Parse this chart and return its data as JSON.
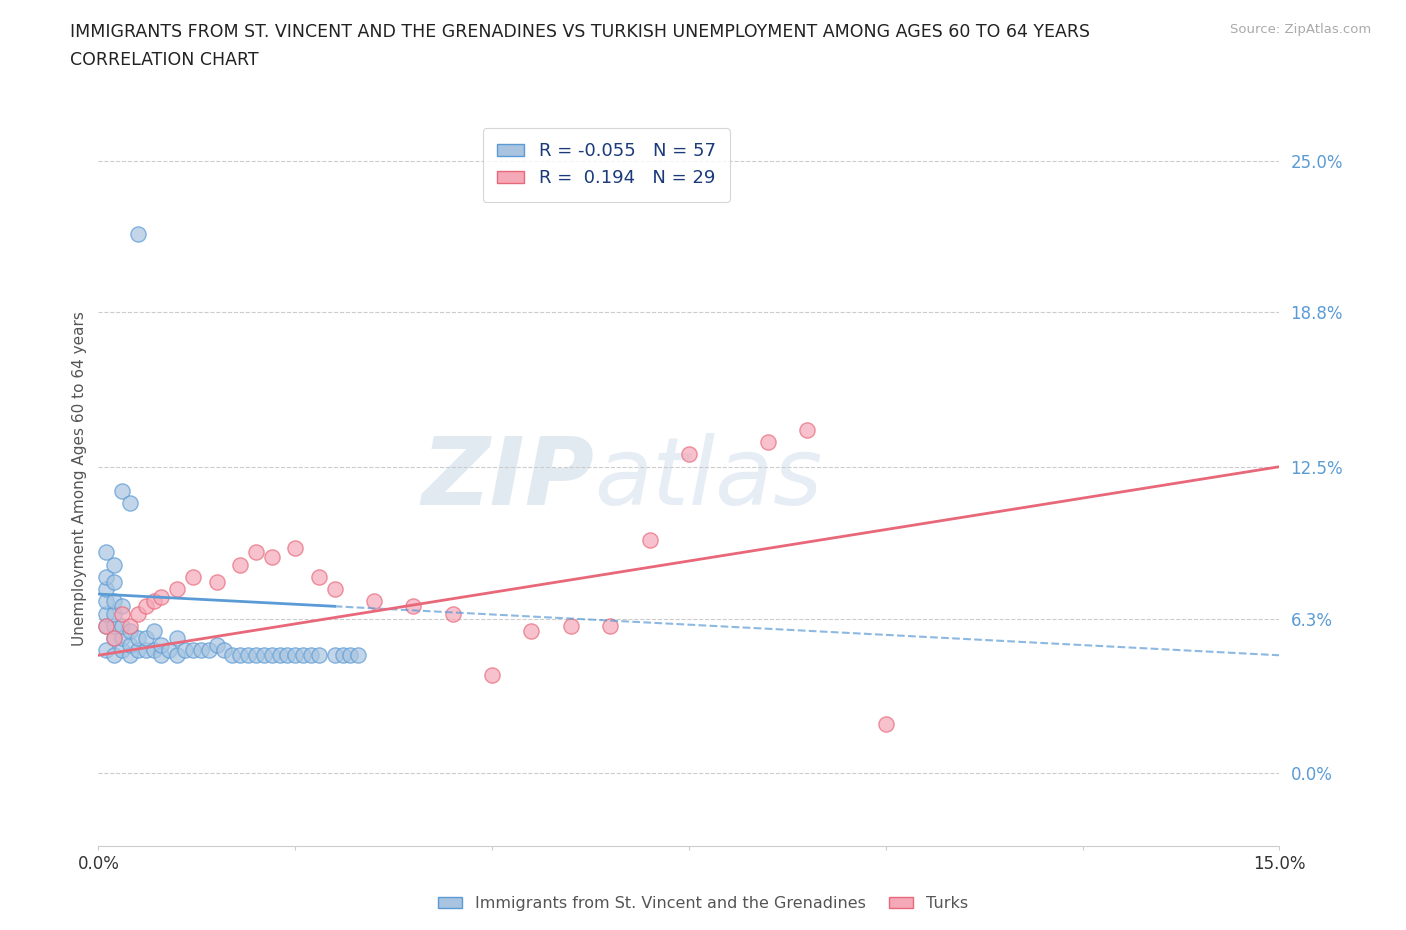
{
  "title_line1": "IMMIGRANTS FROM ST. VINCENT AND THE GRENADINES VS TURKISH UNEMPLOYMENT AMONG AGES 60 TO 64 YEARS",
  "title_line2": "CORRELATION CHART",
  "source_text": "Source: ZipAtlas.com",
  "ylabel": "Unemployment Among Ages 60 to 64 years",
  "xlim": [
    0.0,
    0.15
  ],
  "ylim": [
    -0.02,
    0.27
  ],
  "plot_ylim": [
    0.0,
    0.25
  ],
  "yticks": [
    0.0,
    0.063,
    0.125,
    0.188,
    0.25
  ],
  "ytick_labels": [
    "0.0%",
    "6.3%",
    "12.5%",
    "18.8%",
    "25.0%"
  ],
  "xticks": [
    0.0,
    0.025,
    0.05,
    0.075,
    0.1,
    0.125,
    0.15
  ],
  "xtick_labels": [
    "0.0%",
    "",
    "",
    "",
    "",
    "",
    "15.0%"
  ],
  "blue_R": -0.055,
  "blue_N": 57,
  "pink_R": 0.194,
  "pink_N": 29,
  "blue_color": "#a8c4e0",
  "pink_color": "#f4a8b8",
  "blue_line_color": "#5b9bd5",
  "pink_line_color": "#e8687a",
  "legend_label_blue": "Immigrants from St. Vincent and the Grenadines",
  "legend_label_pink": "Turks",
  "watermark_zip": "ZIP",
  "watermark_atlas": "atlas",
  "blue_scatter_x": [
    0.001,
    0.001,
    0.001,
    0.001,
    0.001,
    0.001,
    0.001,
    0.002,
    0.002,
    0.002,
    0.002,
    0.002,
    0.002,
    0.002,
    0.003,
    0.003,
    0.003,
    0.003,
    0.003,
    0.004,
    0.004,
    0.004,
    0.004,
    0.005,
    0.005,
    0.005,
    0.006,
    0.006,
    0.007,
    0.007,
    0.008,
    0.008,
    0.009,
    0.01,
    0.01,
    0.011,
    0.012,
    0.013,
    0.014,
    0.015,
    0.016,
    0.017,
    0.018,
    0.019,
    0.02,
    0.021,
    0.022,
    0.023,
    0.024,
    0.025,
    0.026,
    0.027,
    0.028,
    0.03,
    0.031,
    0.032,
    0.033
  ],
  "blue_scatter_y": [
    0.05,
    0.06,
    0.065,
    0.07,
    0.075,
    0.08,
    0.09,
    0.048,
    0.055,
    0.06,
    0.065,
    0.07,
    0.078,
    0.085,
    0.05,
    0.055,
    0.06,
    0.068,
    0.115,
    0.048,
    0.052,
    0.058,
    0.11,
    0.05,
    0.055,
    0.22,
    0.05,
    0.055,
    0.05,
    0.058,
    0.048,
    0.052,
    0.05,
    0.048,
    0.055,
    0.05,
    0.05,
    0.05,
    0.05,
    0.052,
    0.05,
    0.048,
    0.048,
    0.048,
    0.048,
    0.048,
    0.048,
    0.048,
    0.048,
    0.048,
    0.048,
    0.048,
    0.048,
    0.048,
    0.048,
    0.048,
    0.048
  ],
  "pink_scatter_x": [
    0.001,
    0.002,
    0.003,
    0.004,
    0.005,
    0.006,
    0.007,
    0.008,
    0.01,
    0.012,
    0.015,
    0.018,
    0.02,
    0.022,
    0.025,
    0.028,
    0.03,
    0.035,
    0.04,
    0.045,
    0.05,
    0.055,
    0.06,
    0.065,
    0.07,
    0.075,
    0.085,
    0.09,
    0.1
  ],
  "pink_scatter_y": [
    0.06,
    0.055,
    0.065,
    0.06,
    0.065,
    0.068,
    0.07,
    0.072,
    0.075,
    0.08,
    0.078,
    0.085,
    0.09,
    0.088,
    0.092,
    0.08,
    0.075,
    0.07,
    0.068,
    0.065,
    0.04,
    0.058,
    0.06,
    0.06,
    0.095,
    0.13,
    0.135,
    0.14,
    0.02
  ],
  "blue_trend_x": [
    0.0,
    0.15
  ],
  "blue_trend_y": [
    0.073,
    0.048
  ],
  "pink_trend_x": [
    0.0,
    0.15
  ],
  "pink_trend_y": [
    0.048,
    0.125
  ]
}
